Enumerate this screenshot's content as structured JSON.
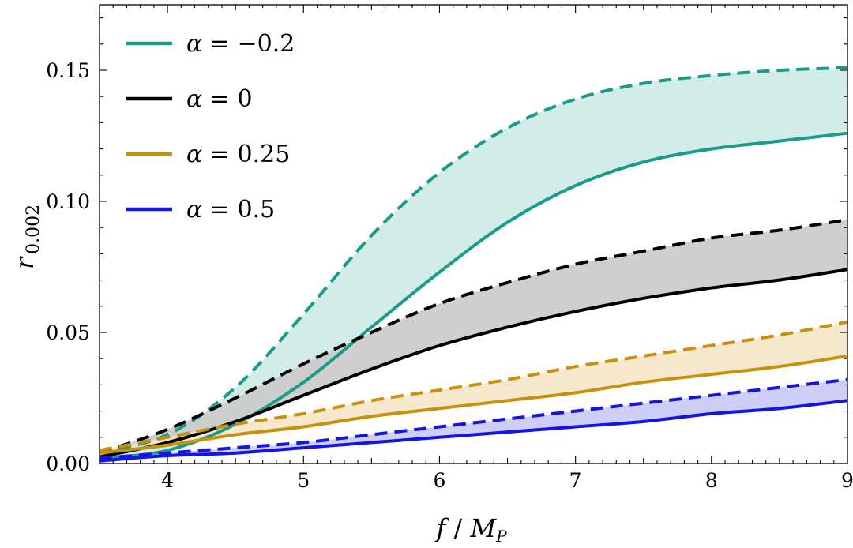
{
  "chart_data": {
    "type": "line",
    "title": "",
    "xlabel": "f / M_P",
    "xlabel_parts": {
      "var": "f",
      "sep": " / ",
      "denom": "M",
      "denom_sub": "P"
    },
    "ylabel": "r 0.002",
    "ylabel_parts": {
      "var": "r",
      "sub": "0.002"
    },
    "xlim": [
      3.5,
      9
    ],
    "ylim": [
      0,
      0.175
    ],
    "x_major_ticks": [
      4,
      5,
      6,
      7,
      8,
      9
    ],
    "x_tick_labels": [
      "4",
      "5",
      "6",
      "7",
      "8",
      "9"
    ],
    "y_major_ticks": [
      0,
      0.05,
      0.1,
      0.15
    ],
    "y_tick_labels": [
      "0.00",
      "0.05",
      "0.10",
      "0.15"
    ],
    "grid": false,
    "legend_position": "top-left",
    "x": [
      3.5,
      4.0,
      4.5,
      5.0,
      5.5,
      6.0,
      6.5,
      7.0,
      7.5,
      8.0,
      8.5,
      9.0
    ],
    "series": [
      {
        "name": "α = −0.2",
        "label_var": "α",
        "label_value": "−0.2",
        "color": "#1a9b8b",
        "fill": "#cdebe6",
        "solid": [
          0.002,
          0.005,
          0.015,
          0.031,
          0.052,
          0.073,
          0.092,
          0.106,
          0.115,
          0.12,
          0.123,
          0.126
        ],
        "dashed": [
          0.004,
          0.011,
          0.029,
          0.057,
          0.087,
          0.111,
          0.128,
          0.139,
          0.145,
          0.148,
          0.15,
          0.151
        ]
      },
      {
        "name": "α = 0",
        "label_var": "α",
        "label_value": "0",
        "color": "#000000",
        "fill": "#cacaca",
        "solid": [
          0.0025,
          0.008,
          0.016,
          0.026,
          0.036,
          0.045,
          0.052,
          0.058,
          0.063,
          0.067,
          0.07,
          0.074
        ],
        "dashed": [
          0.004,
          0.013,
          0.025,
          0.038,
          0.05,
          0.061,
          0.069,
          0.076,
          0.081,
          0.086,
          0.089,
          0.093
        ]
      },
      {
        "name": "α = 0.25",
        "label_var": "α",
        "label_value": "0.25",
        "color": "#c8900c",
        "fill": "#f5e6c8",
        "solid": [
          0.004,
          0.007,
          0.011,
          0.014,
          0.018,
          0.021,
          0.024,
          0.027,
          0.031,
          0.034,
          0.037,
          0.041
        ],
        "dashed": [
          0.005,
          0.01,
          0.015,
          0.019,
          0.024,
          0.028,
          0.032,
          0.037,
          0.041,
          0.045,
          0.049,
          0.054
        ]
      },
      {
        "name": "α = 0.5",
        "label_var": "α",
        "label_value": "0.5",
        "color": "#1414e6",
        "fill": "#c9c9f5",
        "solid": [
          0.001,
          0.003,
          0.004,
          0.006,
          0.008,
          0.01,
          0.012,
          0.014,
          0.016,
          0.019,
          0.021,
          0.024
        ],
        "dashed": [
          0.002,
          0.004,
          0.006,
          0.008,
          0.011,
          0.014,
          0.017,
          0.02,
          0.023,
          0.026,
          0.029,
          0.032
        ]
      }
    ]
  }
}
